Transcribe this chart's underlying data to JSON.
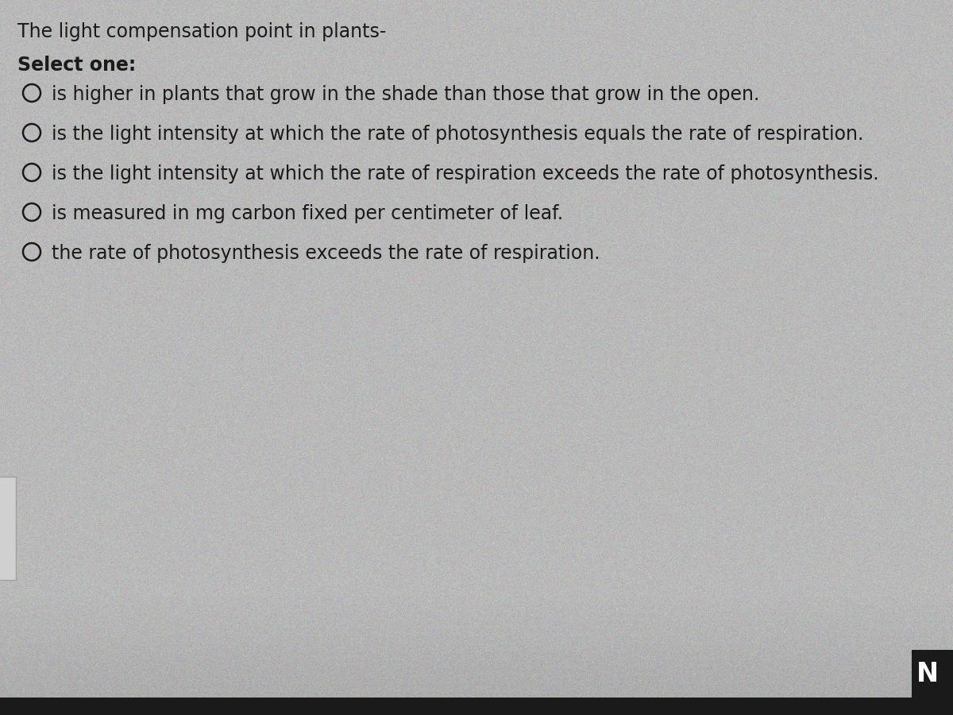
{
  "title": "The light compensation point in plants-",
  "subtitle": "Select one:",
  "options": [
    "is higher in plants that grow in the shade than those that grow in the open.",
    "is the light intensity at which the rate of photosynthesis equals the rate of respiration.",
    "is the light intensity at which the rate of respiration exceeds the rate of photosynthesis.",
    "is measured in mg carbon fixed per centimeter of leaf.",
    "the rate of photosynthesis exceeds the rate of respiration."
  ],
  "bg_color": "#b8b8b8",
  "text_color": "#1a1a1a",
  "title_fontsize": 17,
  "subtitle_fontsize": 17,
  "option_fontsize": 17,
  "circle_color": "#1a1a1a",
  "nav_button_color": "#1a1a1a",
  "nav_button_text": "N",
  "nav_button_text_color": "#ffffff",
  "bottom_bar_color": "#1a1a1a",
  "left_tab_color": "#c8c8c8"
}
